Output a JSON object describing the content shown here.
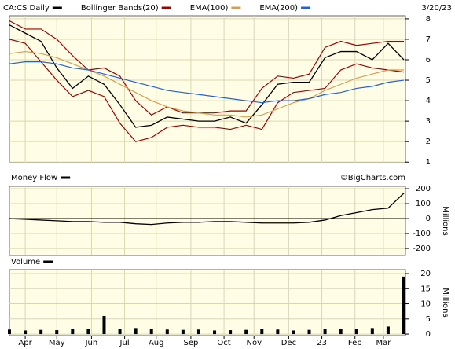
{
  "chart_data": [
    {
      "type": "line",
      "title": "CA:CS Daily",
      "date": "3/20/23",
      "credit": "©BigCharts.com",
      "x": [
        0,
        10,
        20,
        30,
        40,
        50,
        60,
        70,
        80,
        90,
        100,
        110,
        120,
        130,
        140,
        150,
        160,
        170,
        180,
        190,
        200,
        210,
        220,
        230,
        240,
        250
      ],
      "xlim": [
        0,
        251
      ],
      "ylim": [
        0.97,
        8.15
      ],
      "yticks": [
        1,
        2,
        3,
        4,
        5,
        6,
        7,
        8
      ],
      "grid": true,
      "series": [
        {
          "name": "CA:CS Daily",
          "color": "#000000",
          "values": [
            7.7,
            7.3,
            6.9,
            5.6,
            4.6,
            5.2,
            4.8,
            3.8,
            2.7,
            2.8,
            3.2,
            3.1,
            3.0,
            3.0,
            3.2,
            2.9,
            3.8,
            4.8,
            4.9,
            4.9,
            6.1,
            6.4,
            6.4,
            6.0,
            6.8,
            6.0
          ]
        },
        {
          "name": "Bollinger Bands(20)",
          "color": "#a00000",
          "values": [
            7.9,
            7.5,
            7.5,
            7.0,
            6.2,
            5.5,
            5.6,
            5.2,
            4.0,
            3.3,
            3.7,
            3.4,
            3.4,
            3.4,
            3.5,
            3.5,
            4.6,
            5.2,
            5.1,
            5.3,
            6.6,
            6.9,
            6.7,
            6.8,
            6.9,
            6.9
          ],
          "lower": [
            7.0,
            6.8,
            5.9,
            5.0,
            4.2,
            4.5,
            4.2,
            2.9,
            2.0,
            2.2,
            2.7,
            2.8,
            2.7,
            2.7,
            2.6,
            2.8,
            2.6,
            3.9,
            4.4,
            4.5,
            4.6,
            5.5,
            5.8,
            5.6,
            5.5,
            5.4
          ]
        },
        {
          "name": "EMA(100)",
          "color": "#d4a050",
          "values": [
            6.3,
            6.4,
            6.3,
            6.1,
            5.8,
            5.5,
            5.2,
            4.8,
            4.4,
            4.0,
            3.7,
            3.5,
            3.4,
            3.3,
            3.3,
            3.2,
            3.3,
            3.6,
            3.9,
            4.1,
            4.5,
            4.8,
            5.1,
            5.3,
            5.5,
            5.5
          ]
        },
        {
          "name": "EMA(200)",
          "color": "#2060e0",
          "values": [
            5.8,
            5.9,
            5.9,
            5.8,
            5.6,
            5.5,
            5.3,
            5.1,
            4.9,
            4.7,
            4.5,
            4.4,
            4.3,
            4.2,
            4.1,
            4.0,
            3.9,
            4.0,
            4.0,
            4.1,
            4.3,
            4.4,
            4.6,
            4.7,
            4.9,
            5.0
          ]
        }
      ]
    },
    {
      "type": "line",
      "title": "Money Flow",
      "ylabel": "Millions",
      "x": [
        0,
        10,
        20,
        30,
        40,
        50,
        60,
        70,
        80,
        90,
        100,
        110,
        120,
        130,
        140,
        150,
        160,
        170,
        180,
        190,
        200,
        210,
        220,
        230,
        240,
        250
      ],
      "xlim": [
        0,
        251
      ],
      "ylim": [
        -247,
        216
      ],
      "yticks": [
        200,
        100,
        0,
        -100,
        -200
      ],
      "grid": true,
      "series": [
        {
          "name": "Money Flow",
          "color": "#000000",
          "values": [
            0,
            -5,
            -10,
            -15,
            -20,
            -20,
            -25,
            -25,
            -35,
            -40,
            -30,
            -25,
            -25,
            -20,
            -20,
            -25,
            -30,
            -30,
            -30,
            -25,
            -10,
            20,
            40,
            60,
            70,
            170
          ]
        }
      ]
    },
    {
      "type": "bar",
      "title": "Volume",
      "ylabel": "Millions",
      "x": [
        0,
        10,
        20,
        30,
        40,
        50,
        60,
        70,
        80,
        90,
        100,
        110,
        120,
        130,
        140,
        150,
        160,
        170,
        180,
        190,
        200,
        210,
        220,
        230,
        240,
        250
      ],
      "xlim": [
        0,
        251
      ],
      "ylim": [
        -0.5,
        21.3
      ],
      "yticks": [
        0,
        5,
        10,
        15,
        20
      ],
      "grid": true,
      "xticks": [
        {
          "value": 10,
          "label": "Apr"
        },
        {
          "value": 30,
          "label": "May"
        },
        {
          "value": 52,
          "label": "Jun"
        },
        {
          "value": 73,
          "label": "Jul"
        },
        {
          "value": 93,
          "label": "Aug"
        },
        {
          "value": 115,
          "label": "Sep"
        },
        {
          "value": 136,
          "label": "Oct"
        },
        {
          "value": 155,
          "label": "Nov"
        },
        {
          "value": 177,
          "label": "Dec"
        },
        {
          "value": 198,
          "label": "23"
        },
        {
          "value": 219,
          "label": "Feb"
        },
        {
          "value": 237,
          "label": "Mar"
        }
      ],
      "color": "#000000",
      "values": [
        1.5,
        1.2,
        1.4,
        1.3,
        1.8,
        1.6,
        6,
        1.8,
        2.0,
        1.6,
        1.5,
        1.4,
        1.5,
        1.2,
        1.3,
        1.4,
        1.8,
        1.5,
        1.2,
        1.4,
        1.8,
        1.6,
        1.8,
        2.0,
        2.5,
        19
      ]
    }
  ]
}
